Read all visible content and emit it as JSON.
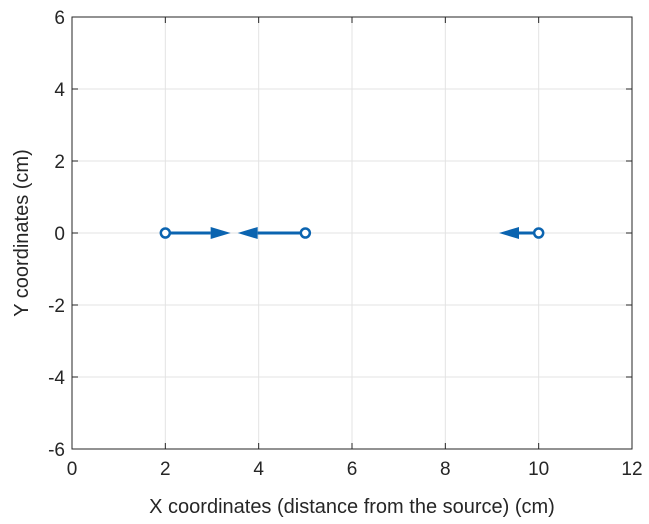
{
  "chart_data": {
    "type": "scatter",
    "title": "",
    "xlabel": "X coordinates (distance from the source) (cm)",
    "ylabel": "Y coordinates (cm)",
    "xlim": [
      0,
      12
    ],
    "ylim": [
      -6,
      6
    ],
    "xticks": [
      0,
      2,
      4,
      6,
      8,
      10,
      12
    ],
    "yticks": [
      -6,
      -4,
      -2,
      0,
      2,
      4,
      6
    ],
    "xtick_labels": [
      "0",
      "2",
      "4",
      "6",
      "8",
      "10",
      "12"
    ],
    "ytick_labels": [
      "-6",
      "-4",
      "-2",
      "0",
      "2",
      "4",
      "6"
    ],
    "grid": true,
    "color": "#0b64b0",
    "points": [
      {
        "x": 2,
        "y": 0
      },
      {
        "x": 5,
        "y": 0
      },
      {
        "x": 10,
        "y": 0
      }
    ],
    "vectors": [
      {
        "x": 2,
        "y": 0,
        "u": 1.4,
        "v": 0
      },
      {
        "x": 5,
        "y": 0,
        "u": -1.45,
        "v": 0
      },
      {
        "x": 10,
        "y": 0,
        "u": -0.85,
        "v": 0
      }
    ]
  }
}
